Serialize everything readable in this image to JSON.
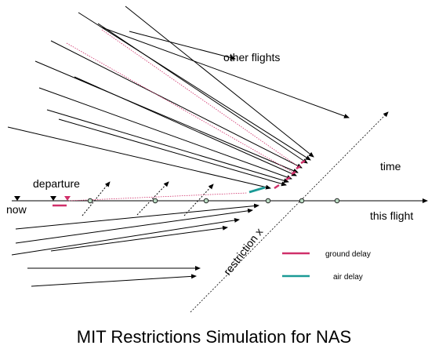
{
  "labels": {
    "other_flights": "other flights",
    "time": "time",
    "departure": "departure",
    "now": "now",
    "this_flight": "this flight",
    "restriction": "restriction x"
  },
  "legend": {
    "ground_delay": "ground delay",
    "air_delay": "air delay"
  },
  "title": "MIT Restrictions Simulation for NAS"
}
